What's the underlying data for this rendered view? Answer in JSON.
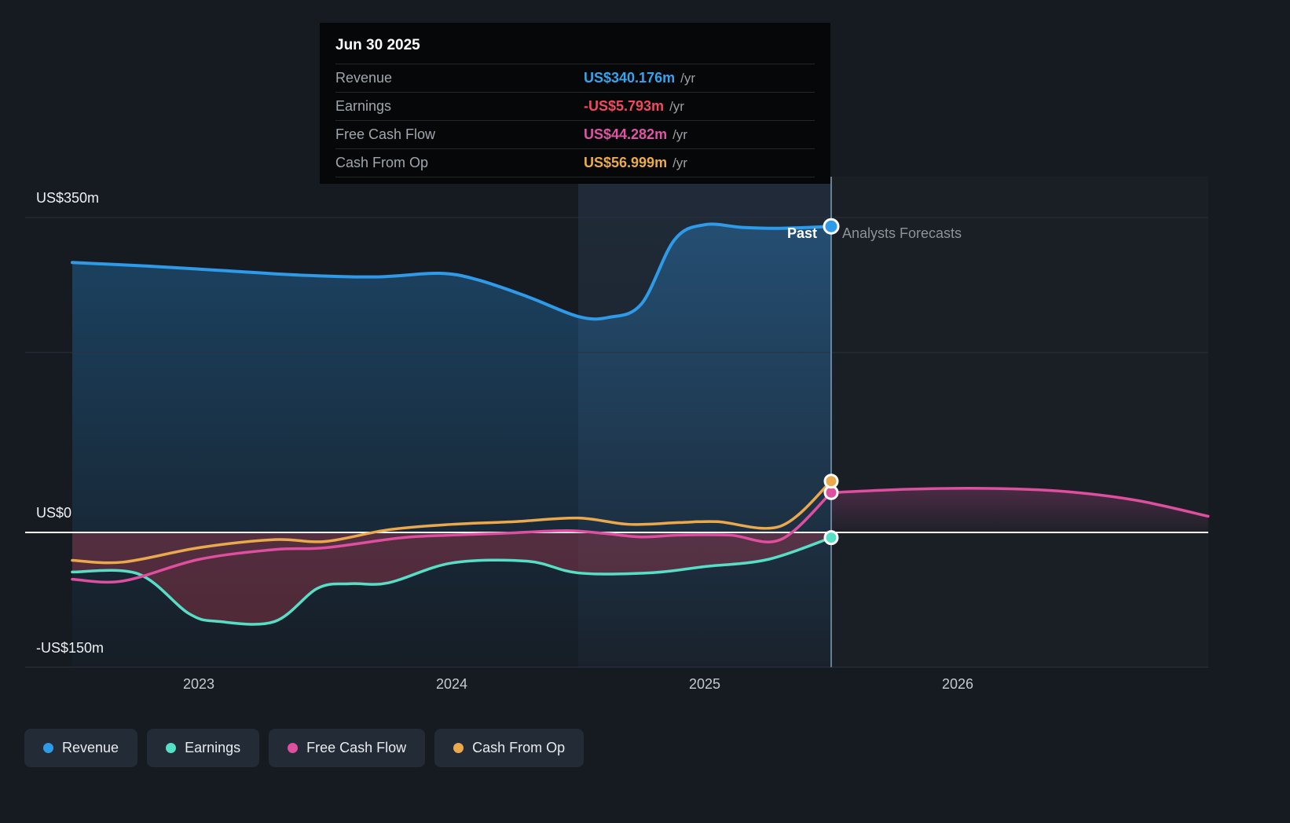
{
  "tooltip": {
    "date": "Jun 30 2025",
    "rows": [
      {
        "label": "Revenue",
        "value": "US$340.176m",
        "suffix": "/yr",
        "color": "#36a3ef"
      },
      {
        "label": "Earnings",
        "value": "-US$5.793m",
        "suffix": "/yr",
        "color": "#f2495f"
      },
      {
        "label": "Free Cash Flow",
        "value": "US$44.282m",
        "suffix": "/yr",
        "color": "#df55a4"
      },
      {
        "label": "Cash From Op",
        "value": "US$56.999m",
        "suffix": "/yr",
        "color": "#ebab4d"
      }
    ]
  },
  "annotations": {
    "past": "Past",
    "forecast": "Analysts Forecasts"
  },
  "axes": {
    "y": [
      {
        "text": "US$350m"
      },
      {
        "text": "US$0"
      },
      {
        "text": "-US$150m"
      }
    ],
    "x": [
      {
        "text": "2023"
      },
      {
        "text": "2024"
      },
      {
        "text": "2025"
      },
      {
        "text": "2026"
      }
    ]
  },
  "legend": [
    {
      "label": "Revenue",
      "color": "#2f9be8"
    },
    {
      "label": "Earnings",
      "color": "#57dfc6"
    },
    {
      "label": "Free Cash Flow",
      "color": "#df4f9f"
    },
    {
      "label": "Cash From Op",
      "color": "#e9a94c"
    }
  ],
  "chart_data": {
    "type": "line",
    "title": "Revenue, Earnings, Free Cash Flow and Cash From Op history with analyst forecasts",
    "units": "US$ millions per year",
    "x_domain": [
      2022.3,
      2027.0
    ],
    "y_domain": [
      -150,
      350
    ],
    "y_gridlines": [
      350,
      200
    ],
    "y_zero_line": 0,
    "band_start": 2024.5,
    "divider_x": 2025.5,
    "divider_date": "Jun 30 2025",
    "x_tick_years": [
      2023,
      2024,
      2025,
      2026
    ],
    "series": [
      {
        "name": "Revenue",
        "color": "#2f9be8",
        "region": "past",
        "marker": 340.176,
        "points": [
          [
            2022.5,
            300
          ],
          [
            2022.8,
            296
          ],
          [
            2023.1,
            291
          ],
          [
            2023.4,
            286
          ],
          [
            2023.7,
            284
          ],
          [
            2023.95,
            288
          ],
          [
            2024.1,
            281
          ],
          [
            2024.3,
            262
          ],
          [
            2024.5,
            240
          ],
          [
            2024.62,
            239
          ],
          [
            2024.75,
            254
          ],
          [
            2024.88,
            325
          ],
          [
            2025.0,
            342
          ],
          [
            2025.15,
            339
          ],
          [
            2025.3,
            338
          ],
          [
            2025.5,
            340.176
          ]
        ]
      },
      {
        "name": "Earnings",
        "color": "#57dfc6",
        "region": "past",
        "marker": -5.793,
        "points": [
          [
            2022.5,
            -44
          ],
          [
            2022.76,
            -46
          ],
          [
            2022.96,
            -90
          ],
          [
            2023.08,
            -99
          ],
          [
            2023.3,
            -99
          ],
          [
            2023.47,
            -62
          ],
          [
            2023.6,
            -57
          ],
          [
            2023.75,
            -56
          ],
          [
            2024.0,
            -34
          ],
          [
            2024.3,
            -32
          ],
          [
            2024.5,
            -45
          ],
          [
            2024.78,
            -45
          ],
          [
            2025.0,
            -38
          ],
          [
            2025.25,
            -30
          ],
          [
            2025.5,
            -5.793
          ]
        ]
      },
      {
        "name": "Free Cash Flow",
        "color": "#df4f9f",
        "region": "past+forecast",
        "marker": 44.282,
        "points": [
          [
            2022.5,
            -52
          ],
          [
            2022.7,
            -54
          ],
          [
            2023.0,
            -30
          ],
          [
            2023.3,
            -19
          ],
          [
            2023.5,
            -17
          ],
          [
            2023.8,
            -6
          ],
          [
            2024.0,
            -3
          ],
          [
            2024.2,
            -1
          ],
          [
            2024.45,
            2
          ],
          [
            2024.6,
            -1
          ],
          [
            2024.75,
            -5
          ],
          [
            2024.9,
            -3
          ],
          [
            2025.1,
            -3
          ],
          [
            2025.3,
            -8
          ],
          [
            2025.5,
            44.282
          ]
        ],
        "forecast": [
          [
            2025.5,
            44.282
          ],
          [
            2025.8,
            48
          ],
          [
            2026.1,
            49
          ],
          [
            2026.4,
            46
          ],
          [
            2026.7,
            36
          ],
          [
            2026.99,
            18
          ]
        ]
      },
      {
        "name": "Cash From Op",
        "color": "#e9a94c",
        "region": "past",
        "marker": 56.999,
        "points": [
          [
            2022.5,
            -31
          ],
          [
            2022.7,
            -33
          ],
          [
            2023.0,
            -17
          ],
          [
            2023.3,
            -8
          ],
          [
            2023.5,
            -10
          ],
          [
            2023.75,
            3
          ],
          [
            2024.0,
            9
          ],
          [
            2024.25,
            12
          ],
          [
            2024.5,
            16
          ],
          [
            2024.7,
            9
          ],
          [
            2024.9,
            11
          ],
          [
            2025.05,
            12
          ],
          [
            2025.3,
            7
          ],
          [
            2025.5,
            56.999
          ]
        ]
      }
    ]
  }
}
